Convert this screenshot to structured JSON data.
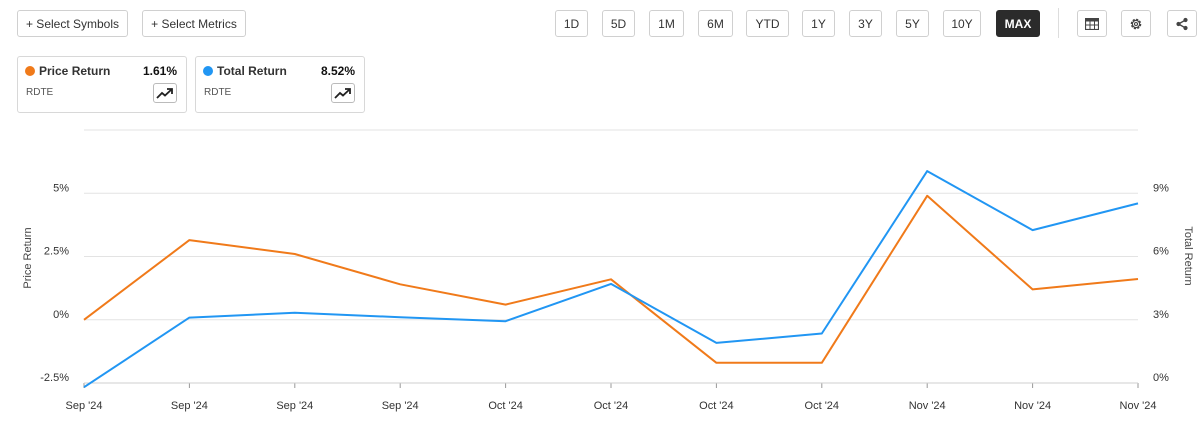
{
  "toolbar": {
    "select_symbols": "+ Select Symbols",
    "select_metrics": "+ Select Metrics",
    "ranges": [
      "1D",
      "5D",
      "1M",
      "6M",
      "YTD",
      "1Y",
      "3Y",
      "5Y",
      "10Y",
      "MAX"
    ],
    "active_range": "MAX",
    "icons": [
      "table-icon",
      "gear-icon",
      "share-icon"
    ]
  },
  "cards": [
    {
      "name": "Price Return",
      "value": "1.61%",
      "symbol": "RDTE",
      "color": "#f07a1a"
    },
    {
      "name": "Total Return",
      "value": "8.52%",
      "symbol": "RDTE",
      "color": "#2196f3"
    }
  ],
  "chart_data": {
    "type": "line",
    "x": [
      "Sep '24",
      "Sep '24",
      "Sep '24",
      "Sep '24",
      "Oct '24",
      "Oct '24",
      "Oct '24",
      "Oct '24",
      "Nov '24",
      "Nov '24",
      "Nov '24"
    ],
    "series": [
      {
        "name": "Price Return",
        "axis": "left",
        "color": "#f07a1a",
        "values": [
          0.0,
          3.15,
          2.6,
          1.4,
          0.6,
          1.6,
          -1.7,
          -1.7,
          4.9,
          1.2,
          1.61
        ]
      },
      {
        "name": "Total Return",
        "axis": "right",
        "color": "#2196f3",
        "values": [
          -0.2,
          3.1,
          3.33,
          3.12,
          2.93,
          4.7,
          1.9,
          2.35,
          10.05,
          7.25,
          8.52
        ]
      }
    ],
    "ylabel": "Price Return",
    "y2label": "Total Return",
    "ylim": [
      -2.5,
      7.5
    ],
    "y2lim": [
      0,
      12
    ],
    "yticks": [
      "-2.5%",
      "0%",
      "2.5%",
      "5%"
    ],
    "y2ticks": [
      "0%",
      "3%",
      "6%",
      "9%"
    ],
    "grid": true
  }
}
